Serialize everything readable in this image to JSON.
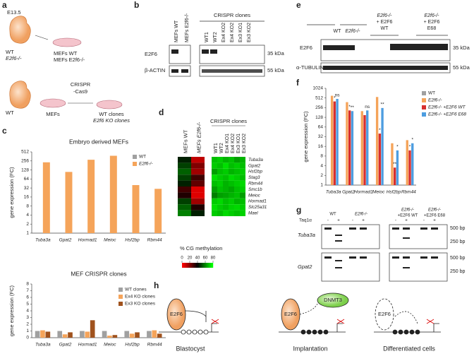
{
  "panel_labels": [
    "a",
    "b",
    "c",
    "d",
    "e",
    "f",
    "g",
    "h"
  ],
  "a": {
    "stage": "E13.5",
    "genotype_top": [
      "WT",
      "E2f6-/-"
    ],
    "dishes_top": [
      "MEFs WT",
      "MEFs E2f6-/-"
    ],
    "genotype_bottom": "WT",
    "crispr": [
      "CRISPR",
      "-Cas9"
    ],
    "dish_mid": "MEFs",
    "dish_right": [
      "WT clones",
      "E2f6 KO clones"
    ]
  },
  "b": {
    "lanes": [
      "MEFs WT",
      "MEFs E2f6-/-",
      "WT1",
      "WT2",
      "Ex4 KO2",
      "Ex4 KO2",
      "Ex3 KO1",
      "Ex3 KO2"
    ],
    "group": "CRISPR clones",
    "rows": [
      "E2F6",
      "β-ACTIN"
    ],
    "sizes": [
      "35 kDa",
      "55 kDa"
    ]
  },
  "e": {
    "lanes": [
      [
        "WT"
      ],
      [
        "E2f6-/-"
      ],
      [
        "E2f6-/-",
        "+ E2F6",
        "WT"
      ],
      [
        "E2f6-/-",
        "+ E2F6",
        "E68"
      ]
    ],
    "rows": [
      "E2F6",
      "α-TUBULIN"
    ],
    "sizes": [
      "35 kDa",
      "55 kDa"
    ]
  },
  "g": {
    "headers": [
      [
        "WT"
      ],
      [
        "E2f6-/-"
      ],
      [
        "E2f6-/-",
        "+E2F6 WT"
      ],
      [
        "E2f6-/-",
        "+E2F6 E68"
      ]
    ],
    "enzyme": "Taq1α",
    "signs": [
      "-",
      "+",
      "-",
      "+",
      "-",
      "+",
      "-",
      "+"
    ],
    "genes": [
      "Tuba3a",
      "Gpat2"
    ],
    "sizes": [
      "500 bp",
      "250 bp",
      "500 bp",
      "250 bp"
    ]
  },
  "h": {
    "proteins": [
      "E2F6",
      "E2F6",
      "E2F6"
    ],
    "dnmt": "DNMT3",
    "stages": [
      "Blastocyst",
      "Implantation",
      "Differentiated cells"
    ]
  },
  "chart_data": [
    {
      "type": "bar",
      "title": "Embryo derived MEFs",
      "y_label": "gene expression (FC)",
      "categories": [
        "Tuba3a",
        "Gpat2",
        "Hormad1",
        "Meioc",
        "Hsf2bp",
        "Rbm44"
      ],
      "series": [
        {
          "name": "WT",
          "color": "#a0a0a0",
          "values": [
            1,
            1,
            1,
            1,
            1,
            1
          ]
        },
        {
          "name": "E2f6-/-",
          "color": "#f5a45a",
          "values": [
            230,
            110,
            280,
            380,
            40,
            30
          ]
        }
      ],
      "log_scale": true,
      "ylim": [
        1,
        512
      ],
      "yticks": [
        1,
        2,
        4,
        8,
        16,
        32,
        64,
        128,
        256,
        512
      ],
      "legend": "upper right"
    },
    {
      "type": "bar",
      "title": "MEF CRISPR clones",
      "y_label": "gene expression (FC)",
      "categories": [
        "Tuba3a",
        "Gpat2",
        "Hormad1",
        "Meioc",
        "Hsf2bp",
        "Rbm44"
      ],
      "series": [
        {
          "name": "WT clones",
          "color": "#a0a0a0",
          "values": [
            1,
            1,
            1,
            1,
            1,
            1
          ]
        },
        {
          "name": "Ex4 KO clones",
          "color": "#f5a45a",
          "values": [
            1.1,
            0.5,
            0.9,
            0.3,
            0.6,
            1.1
          ]
        },
        {
          "name": "Ex3 KO clones",
          "color": "#a0521d",
          "values": [
            0.9,
            0.8,
            2.6,
            0.4,
            0.8,
            0.6
          ]
        }
      ],
      "log_scale": false,
      "ylim": [
        0,
        8
      ],
      "yticks": [
        0,
        1,
        2,
        3,
        4,
        5,
        6,
        7,
        8
      ],
      "legend": "upper right"
    },
    {
      "type": "heatmap",
      "categories": [
        "MEFs WT",
        "MEFs E2f6-/-",
        "WT1",
        "WT2",
        "Ex4 KO1",
        "Ex4 KO2",
        "Ex3 KO1",
        "Ex3 KO2"
      ],
      "group_label": "CRISPR clones",
      "rows": [
        "Tuba3a",
        "Gpat2",
        "Hsf2bp",
        "Stag3",
        "Rbm44",
        "Smc1b",
        "Meioc",
        "Hormad1",
        "Slc25a31",
        "Mael"
      ],
      "values": [
        [
          45,
          10,
          70,
          72,
          68,
          70,
          65,
          68
        ],
        [
          50,
          20,
          72,
          70,
          75,
          70,
          72,
          70
        ],
        [
          55,
          15,
          65,
          70,
          72,
          68,
          70,
          72
        ],
        [
          50,
          30,
          75,
          72,
          70,
          74,
          72,
          70
        ],
        [
          45,
          25,
          70,
          72,
          68,
          70,
          72,
          74
        ],
        [
          30,
          5,
          65,
          70,
          68,
          66,
          70,
          72
        ],
        [
          35,
          5,
          60,
          65,
          66,
          68,
          70,
          65
        ],
        [
          50,
          15,
          72,
          74,
          70,
          72,
          68,
          70
        ],
        [
          55,
          35,
          75,
          72,
          70,
          73,
          74,
          72
        ],
        [
          60,
          45,
          72,
          70,
          74,
          72,
          70,
          73
        ]
      ],
      "colorbar_title": "% CG methylation",
      "zlim": [
        0,
        80
      ],
      "zticks": [
        0,
        20,
        40,
        60,
        80
      ],
      "colors": [
        "#ff0000",
        "#000000",
        "#00ff00"
      ]
    },
    {
      "type": "bar",
      "y_label": "gene expression (FC)",
      "categories": [
        "Tuba3a",
        "Gpat2",
        "Hormad1",
        "Meioc",
        "Hsf2bp",
        "Rbm44"
      ],
      "series": [
        {
          "name": "WT",
          "color": "#a0a0a0",
          "values": [
            1,
            1,
            1,
            1,
            1,
            1
          ]
        },
        {
          "name": "E2f6-/-",
          "color": "#f5a45a",
          "values": [
            600,
            380,
            200,
            550,
            20,
            25
          ]
        },
        {
          "name": "E2f6-/- +E2F6 WT",
          "color": "#d62f2f",
          "values": [
            400,
            210,
            150,
            40,
            3.5,
            12
          ]
        },
        {
          "name": "E2f6-/- +E2F6 E68",
          "color": "#4d9de0",
          "values": [
            480,
            200,
            210,
            250,
            12,
            20
          ]
        }
      ],
      "log_scale": true,
      "ylim": [
        1,
        1024
      ],
      "yticks": [
        1,
        2,
        4,
        8,
        16,
        32,
        64,
        128,
        256,
        512,
        1024
      ],
      "legend": "right",
      "annotations": [
        {
          "text": "*",
          "category": 0,
          "series": 2
        },
        {
          "text": "ns",
          "category": 0,
          "series": 3
        },
        {
          "text": "*",
          "category": 1,
          "series": 2
        },
        {
          "text": "**",
          "category": 1,
          "series": 3
        },
        {
          "text": "ns",
          "category": 2,
          "series": 3
        },
        {
          "text": "*",
          "category": 3,
          "series": 2
        },
        {
          "text": "**",
          "category": 3,
          "series": 3
        },
        {
          "text": "**",
          "category": 4,
          "series": 2
        },
        {
          "text": "*",
          "category": 4,
          "series": 3
        },
        {
          "text": "*",
          "category": 5,
          "series": 2
        },
        {
          "text": "*",
          "category": 5,
          "series": 3
        }
      ]
    }
  ]
}
